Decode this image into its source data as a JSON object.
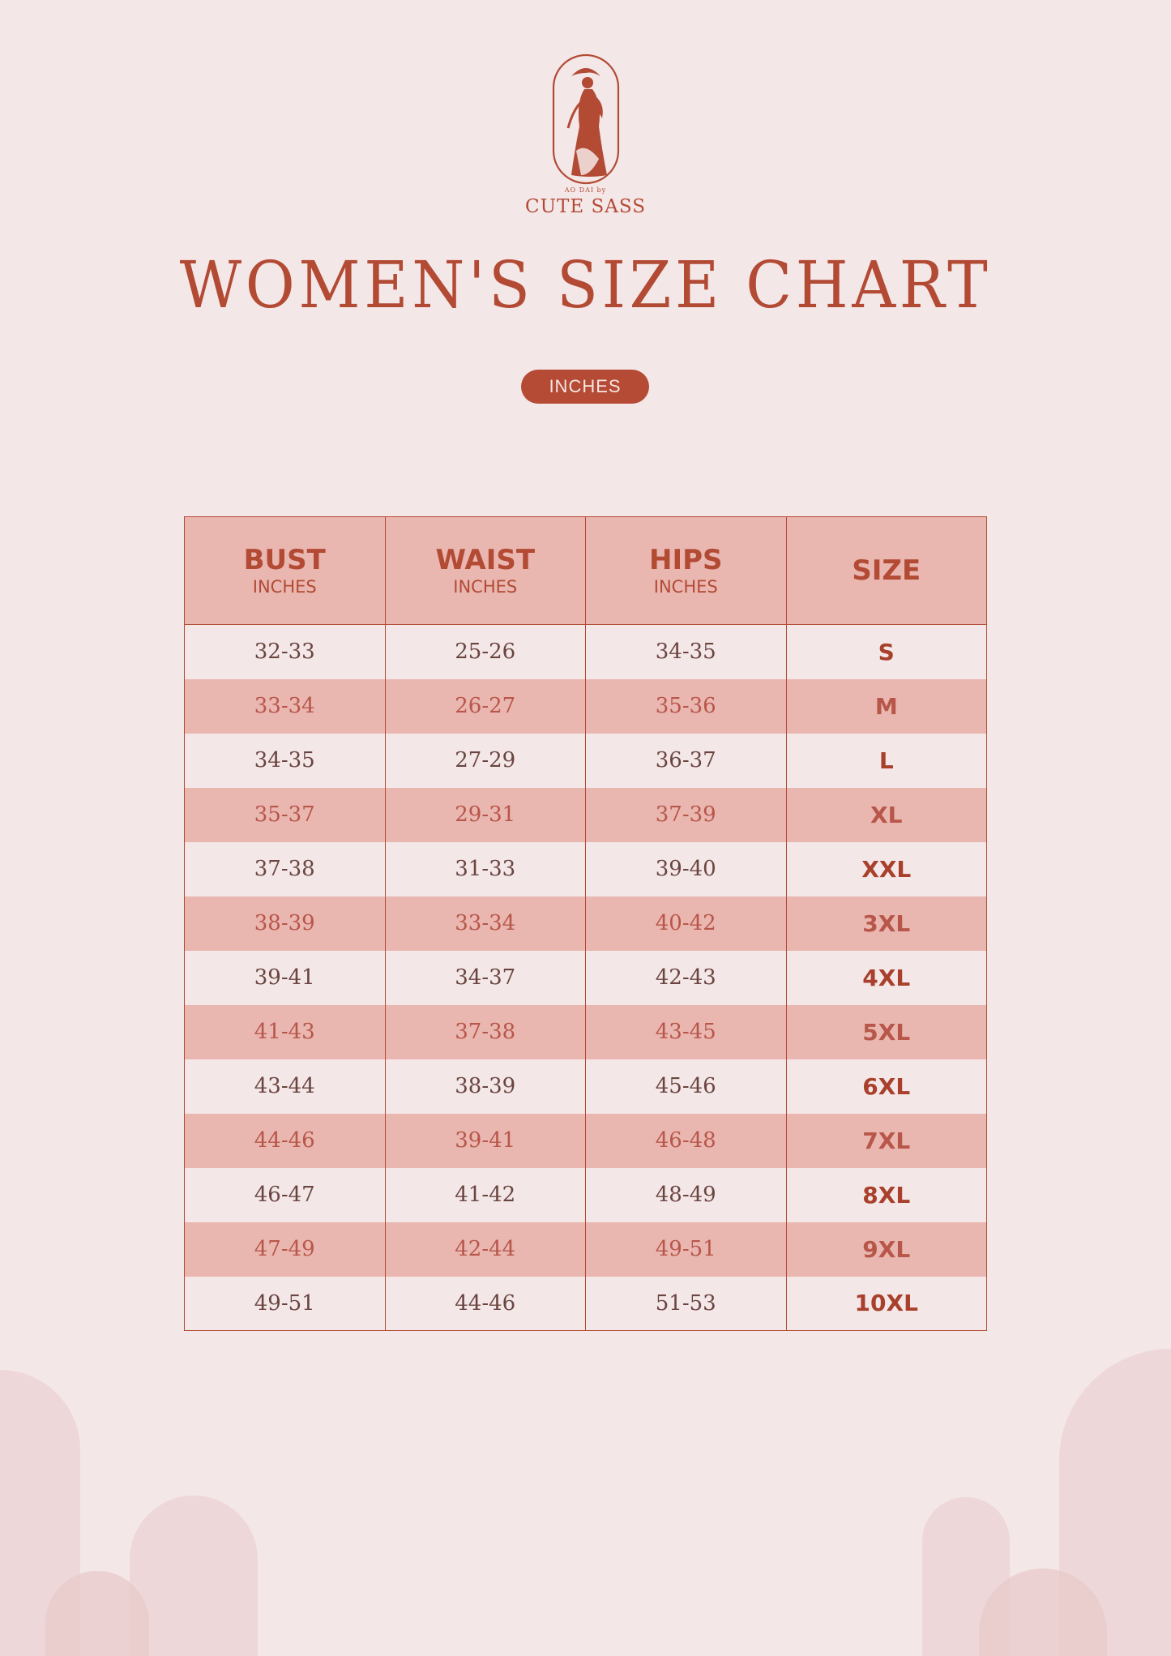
{
  "brand": {
    "tagline": "AO DAI by",
    "name": "CUTE SASS"
  },
  "title": "WOMEN'S SIZE CHART",
  "unit_label": "INCHES",
  "table": {
    "headers": [
      {
        "label": "BUST",
        "sub": "INCHES"
      },
      {
        "label": "WAIST",
        "sub": "INCHES"
      },
      {
        "label": "HIPS",
        "sub": "INCHES"
      },
      {
        "label": "SIZE",
        "sub": ""
      }
    ],
    "rows": [
      {
        "bust": "32-33",
        "waist": "25-26",
        "hips": "34-35",
        "size": "S"
      },
      {
        "bust": "33-34",
        "waist": "26-27",
        "hips": "35-36",
        "size": "M"
      },
      {
        "bust": "34-35",
        "waist": "27-29",
        "hips": "36-37",
        "size": "L"
      },
      {
        "bust": "35-37",
        "waist": "29-31",
        "hips": "37-39",
        "size": "XL"
      },
      {
        "bust": "37-38",
        "waist": "31-33",
        "hips": "39-40",
        "size": "XXL"
      },
      {
        "bust": "38-39",
        "waist": "33-34",
        "hips": "40-42",
        "size": "3XL"
      },
      {
        "bust": "39-41",
        "waist": "34-37",
        "hips": "42-43",
        "size": "4XL"
      },
      {
        "bust": "41-43",
        "waist": "37-38",
        "hips": "43-45",
        "size": "5XL"
      },
      {
        "bust": "43-44",
        "waist": "38-39",
        "hips": "45-46",
        "size": "6XL"
      },
      {
        "bust": "44-46",
        "waist": "39-41",
        "hips": "46-48",
        "size": "7XL"
      },
      {
        "bust": "46-47",
        "waist": "41-42",
        "hips": "48-49",
        "size": "8XL"
      },
      {
        "bust": "47-49",
        "waist": "42-44",
        "hips": "49-51",
        "size": "9XL"
      },
      {
        "bust": "49-51",
        "waist": "44-46",
        "hips": "51-53",
        "size": "10XL"
      }
    ]
  },
  "colors": {
    "background": "#f4e7e8",
    "accent": "#b24a34",
    "row_alt": "#e9b6b0"
  }
}
